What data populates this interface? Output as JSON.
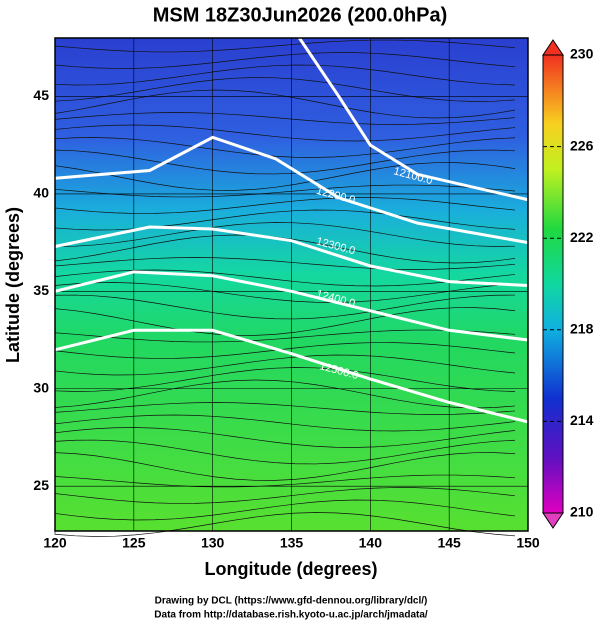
{
  "title": "MSM 18Z30Jun2026 (200.0hPa)",
  "x_axis": {
    "label": "Longitude (degrees)",
    "lim": [
      120,
      150
    ],
    "ticks": [
      120,
      125,
      130,
      135,
      140,
      145,
      150
    ]
  },
  "y_axis": {
    "label": "Latitude  (degrees)",
    "lim": [
      22.7,
      48
    ],
    "ticks": [
      25,
      30,
      35,
      40,
      45
    ]
  },
  "colorbar": {
    "lim": [
      210,
      230
    ],
    "ticks": [
      210,
      214,
      218,
      222,
      226,
      230
    ]
  },
  "contours": [
    {
      "value": 12100,
      "label": "12100.0",
      "label_at": [
        142.7,
        40.9
      ],
      "points": [
        [
          135.5,
          48
        ],
        [
          138,
          45
        ],
        [
          140,
          42.5
        ],
        [
          143,
          41
        ],
        [
          150,
          39.7
        ]
      ]
    },
    {
      "value": 12200,
      "label": "12200.0",
      "label_at": [
        137.8,
        39.9
      ],
      "points": [
        [
          120,
          40.8
        ],
        [
          126,
          41.2
        ],
        [
          130,
          42.9
        ],
        [
          134,
          41.8
        ],
        [
          138,
          39.8
        ],
        [
          143,
          38.5
        ],
        [
          150,
          37.5
        ]
      ]
    },
    {
      "value": 12300,
      "label": "12300.0",
      "label_at": [
        137.8,
        37.3
      ],
      "points": [
        [
          120,
          37.3
        ],
        [
          126,
          38.3
        ],
        [
          130,
          38.2
        ],
        [
          135,
          37.6
        ],
        [
          140,
          36.3
        ],
        [
          145,
          35.5
        ],
        [
          150,
          35.3
        ]
      ]
    },
    {
      "value": 12400,
      "label": "12400.0",
      "label_at": [
        137.8,
        34.6
      ],
      "points": [
        [
          120,
          35
        ],
        [
          125,
          36
        ],
        [
          130,
          35.8
        ],
        [
          135,
          35
        ],
        [
          140,
          34
        ],
        [
          145,
          33
        ],
        [
          150,
          32.5
        ]
      ]
    },
    {
      "value": 12500,
      "label": "12500.0",
      "label_at": [
        138,
        30.9
      ],
      "points": [
        [
          120,
          32
        ],
        [
          125,
          33
        ],
        [
          130,
          33
        ],
        [
          135,
          31.8
        ],
        [
          140,
          30.5
        ],
        [
          145,
          29.3
        ],
        [
          150,
          28.3
        ]
      ]
    }
  ],
  "credits": [
    "Drawing by DCL (https://www.gfd-dennou.org/library/dcl/)",
    "Data from http://database.rish.kyoto-u.ac.jp/arch/jmadata/"
  ]
}
